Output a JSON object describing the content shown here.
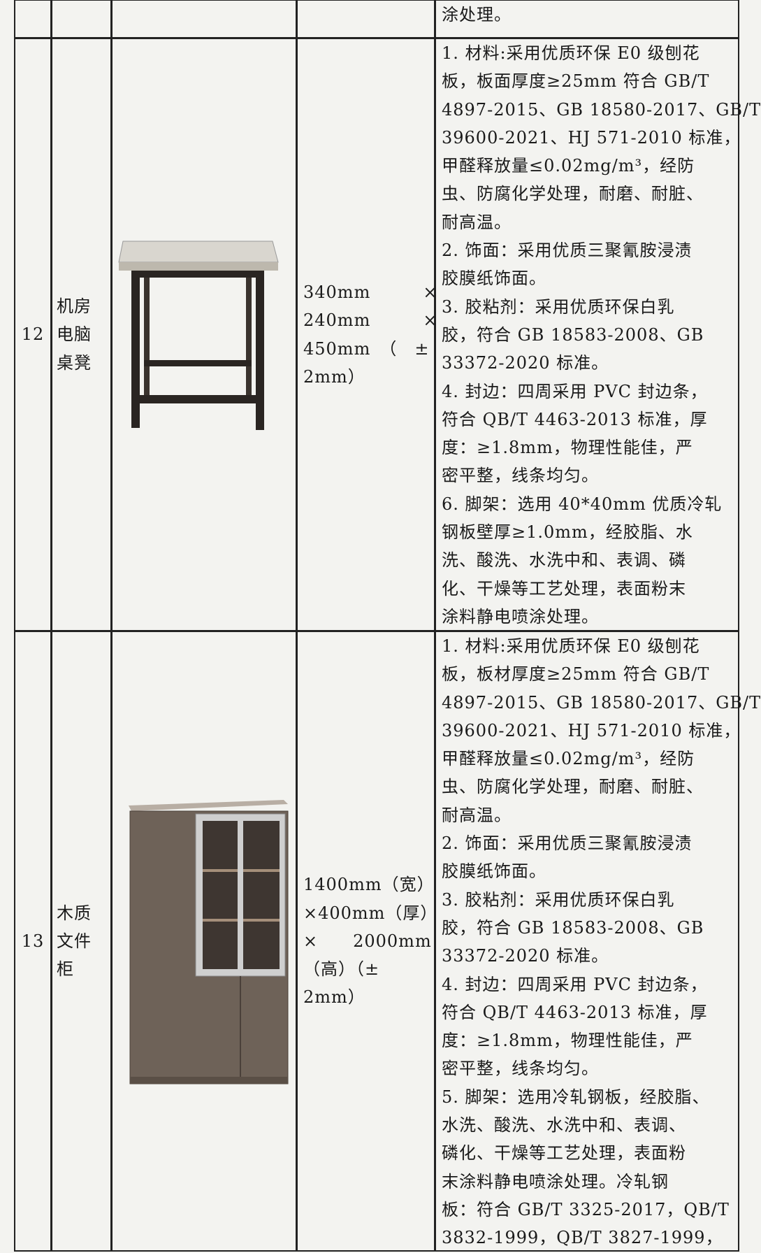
{
  "table": {
    "rows": [
      {
        "description": [
          "涂处理。"
        ]
      },
      {
        "no": "12",
        "name": [
          "机房",
          "电脑",
          "桌凳"
        ],
        "size": [
          "340mm　　　×",
          "240mm　　　×",
          "450mm　（　±",
          "2mm）"
        ],
        "description": [
          "1. 材料:采用优质环保 E0 级刨花",
          "板，板面厚度≥25mm 符合 GB/T",
          "4897-2015、GB 18580-2017、GB/T",
          "39600-2021、HJ 571-2010 标准，",
          "甲醛释放量≤0.02mg/m³，经防",
          "虫、防腐化学处理，耐磨、耐脏、",
          "耐高温。",
          "2. 饰面：采用优质三聚氰胺浸渍",
          "胶膜纸饰面。",
          "3. 胶粘剂：采用优质环保白乳",
          "胶，符合 GB 18583-2008、GB",
          "33372-2020 标准。",
          "4. 封边：四周采用 PVC 封边条，",
          "符合 QB/T 4463-2013 标准，厚",
          "度：≥1.8mm，物理性能佳，严",
          "密平整，线条均匀。",
          "6. 脚架：选用 40*40mm 优质冷轧",
          "钢板壁厚≥1.0mm，经胶脂、水",
          "洗、酸洗、水洗中和、表调、磷",
          "化、干燥等工艺处理，表面粉末",
          "涂料静电喷涂处理。"
        ]
      },
      {
        "no": "13",
        "name": [
          "木质",
          "文件",
          "柜"
        ],
        "size": [
          "1400mm（宽）",
          "×400mm（厚）",
          "×　　2000mm",
          "（高）（±",
          "2mm）"
        ],
        "description": [
          "1. 材料:采用优质环保 E0 级刨花",
          "板，板材厚度≥25mm 符合 GB/T",
          "4897-2015、GB 18580-2017、GB/T",
          "39600-2021、HJ 571-2010 标准，",
          "甲醛释放量≤0.02mg/m³，经防",
          "虫、防腐化学处理，耐磨、耐脏、",
          "耐高温。",
          "2. 饰面：采用优质三聚氰胺浸渍",
          "胶膜纸饰面。",
          "3. 胶粘剂：采用优质环保白乳",
          "胶，符合 GB 18583-2008、GB",
          "33372-2020 标准。",
          "4. 封边：四周采用 PVC 封边条，",
          "符合 QB/T 4463-2013 标准，厚",
          "度：≥1.8mm，物理性能佳，严",
          "密平整，线条均匀。",
          "5. 脚架：选用冷轧钢板，经胶脂、",
          "水洗、酸洗、水洗中和、表调、",
          "磷化、干燥等工艺处理，表面粉",
          "末涂料静电喷涂处理。冷轧钢",
          "板：符合 GB/T 3325-2017，QB/T",
          "3832-1999，QB/T 3827-1999，"
        ]
      }
    ]
  }
}
